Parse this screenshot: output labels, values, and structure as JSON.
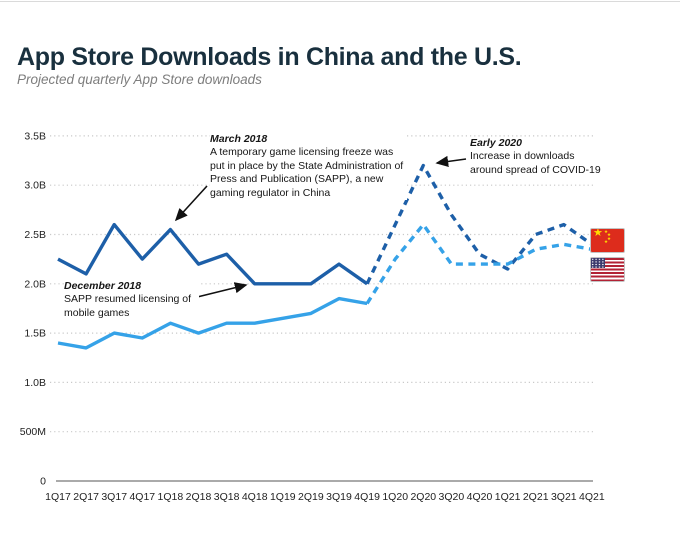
{
  "header": {
    "title": "App Store Downloads in China and the U.S.",
    "subtitle": "Projected quarterly App Store downloads"
  },
  "chart_data": {
    "type": "line",
    "unit": "quarterly App Store downloads",
    "x": [
      "1Q17",
      "2Q17",
      "3Q17",
      "4Q17",
      "1Q18",
      "2Q18",
      "3Q18",
      "4Q18",
      "1Q19",
      "2Q19",
      "3Q19",
      "4Q19",
      "1Q20",
      "2Q20",
      "3Q20",
      "4Q20",
      "1Q21",
      "2Q21",
      "3Q21",
      "4Q21"
    ],
    "projection_start": "4Q19",
    "solid_until_index": 11,
    "series": [
      {
        "name": "China",
        "color": "#1d5fa8",
        "flag": "china-flag",
        "values_billions": [
          2.25,
          2.1,
          2.6,
          2.25,
          2.55,
          2.2,
          2.3,
          2.0,
          2.0,
          2.0,
          2.2,
          2.0,
          2.6,
          3.2,
          2.7,
          2.3,
          2.15,
          2.5,
          2.6,
          2.4
        ]
      },
      {
        "name": "U.S.",
        "color": "#35a2e8",
        "flag": "us-flag",
        "values_billions": [
          1.4,
          1.35,
          1.5,
          1.45,
          1.6,
          1.5,
          1.6,
          1.6,
          1.65,
          1.7,
          1.85,
          1.8,
          2.25,
          2.6,
          2.2,
          2.2,
          2.2,
          2.35,
          2.4,
          2.35
        ]
      }
    ],
    "ylim": [
      0,
      3.5
    ],
    "yticks": [
      {
        "value": 3.5,
        "label": "3.5B"
      },
      {
        "value": 3.0,
        "label": "3.0B"
      },
      {
        "value": 2.5,
        "label": "2.5B"
      },
      {
        "value": 2.0,
        "label": "2.0B"
      },
      {
        "value": 1.5,
        "label": "1.5B"
      },
      {
        "value": 1.0,
        "label": "1.0B"
      },
      {
        "value": 0.5,
        "label": "500M"
      },
      {
        "value": 0,
        "label": "0"
      }
    ],
    "grid": "dotted horizontal, solid baseline",
    "legend_position": "flags at right end of lines"
  },
  "annotations": [
    {
      "heading": "March 2018",
      "body": "A temporary game licensing freeze was put in place by the State Administration of Press and Publication (SAPP), a new gaming regulator in China",
      "arrow": {
        "from": [
          207,
          186
        ],
        "to": [
          176,
          220
        ]
      }
    },
    {
      "heading": "December 2018",
      "body": "SAPP resumed licensing of mobile games",
      "arrow": {
        "from": [
          181,
          301
        ],
        "to": [
          246,
          285
        ]
      }
    },
    {
      "heading": "Early 2020",
      "body": "Increase in downloads around spread of COVID-19",
      "arrow": {
        "from": [
          466,
          159
        ],
        "to": [
          437,
          163
        ]
      }
    }
  ]
}
